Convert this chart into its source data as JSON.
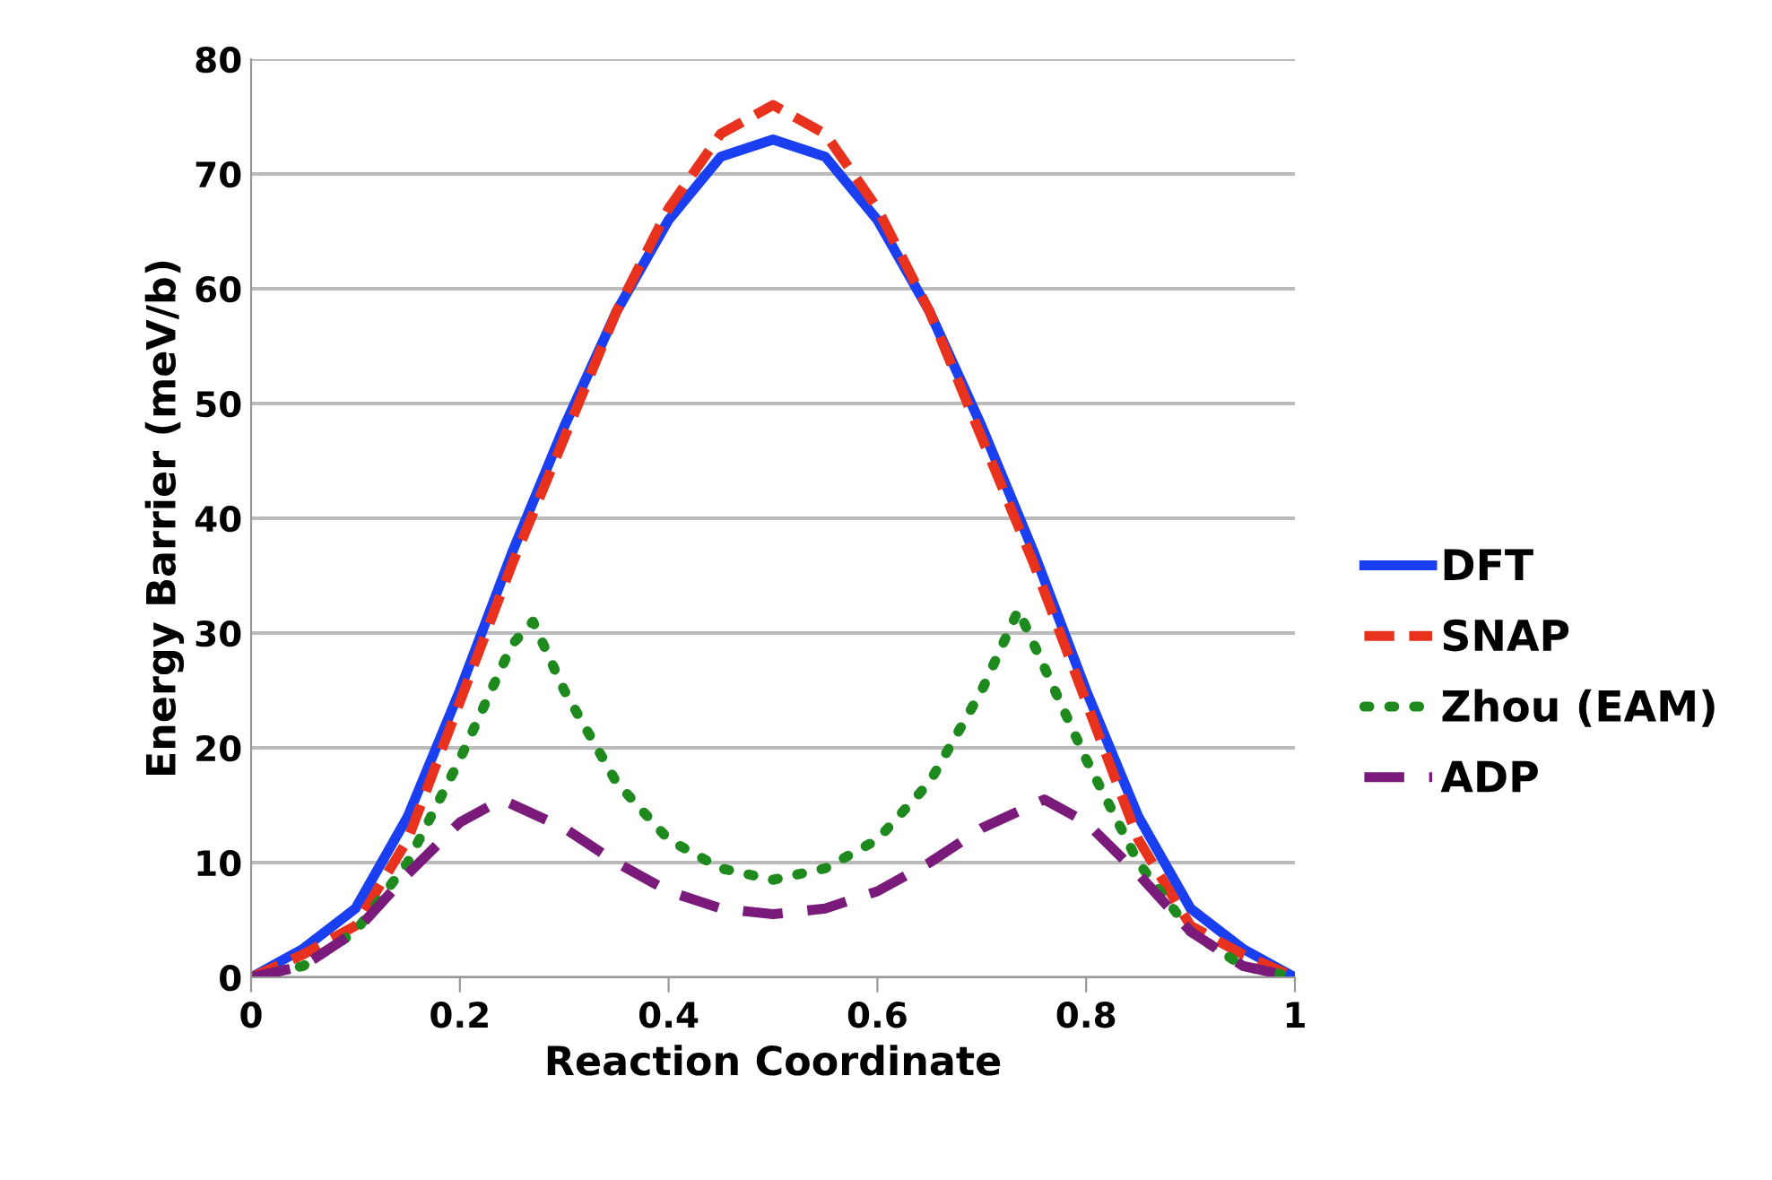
{
  "chart_data": {
    "type": "line",
    "xlabel": "Reaction Coordinate",
    "ylabel": "Energy Barrier (meV/b)",
    "xlim": [
      0,
      1
    ],
    "ylim": [
      0,
      80
    ],
    "xticks": [
      0,
      0.2,
      0.4,
      0.6,
      0.8,
      1
    ],
    "yticks": [
      0,
      10,
      20,
      30,
      40,
      50,
      60,
      70,
      80
    ],
    "grid": "y",
    "legend": "right",
    "series": [
      {
        "name": "DFT",
        "color": "#1a3ff0",
        "line_style": "solid",
        "x": [
          0,
          0.05,
          0.1,
          0.15,
          0.2,
          0.25,
          0.3,
          0.35,
          0.4,
          0.45,
          0.5,
          0.55,
          0.6,
          0.65,
          0.7,
          0.75,
          0.8,
          0.85,
          0.9,
          0.95,
          1
        ],
        "values": [
          0,
          2.5,
          6,
          14,
          25,
          37,
          48,
          58,
          66,
          71.5,
          73,
          71.5,
          66,
          58,
          48,
          37,
          25,
          14,
          6,
          2.5,
          0
        ]
      },
      {
        "name": "SNAP",
        "color": "#e8321e",
        "line_style": "dashed",
        "x": [
          0,
          0.05,
          0.1,
          0.15,
          0.2,
          0.25,
          0.3,
          0.35,
          0.4,
          0.45,
          0.5,
          0.55,
          0.6,
          0.65,
          0.7,
          0.75,
          0.8,
          0.85,
          0.9,
          0.95,
          1
        ],
        "values": [
          0,
          2,
          4.5,
          12,
          24,
          36,
          47,
          58,
          67,
          73.5,
          76,
          73.5,
          67,
          58,
          47,
          36,
          24,
          12,
          4.5,
          2,
          0
        ]
      },
      {
        "name": "Zhou (EAM)",
        "color": "#1e8a1e",
        "line_style": "dotted",
        "x": [
          0,
          0.05,
          0.1,
          0.15,
          0.2,
          0.25,
          0.27,
          0.3,
          0.35,
          0.4,
          0.45,
          0.5,
          0.55,
          0.6,
          0.65,
          0.7,
          0.735,
          0.76,
          0.8,
          0.85,
          0.9,
          0.95,
          1
        ],
        "values": [
          0,
          1,
          4,
          10,
          19,
          29,
          31,
          25,
          17,
          12,
          9.5,
          8.5,
          9.5,
          12,
          17,
          25,
          32,
          27,
          19,
          10,
          4,
          1,
          0
        ]
      },
      {
        "name": "ADP",
        "color": "#7a1a7a",
        "line_style": "dashed",
        "x": [
          0,
          0.05,
          0.1,
          0.15,
          0.2,
          0.24,
          0.3,
          0.35,
          0.4,
          0.45,
          0.5,
          0.55,
          0.6,
          0.65,
          0.7,
          0.76,
          0.8,
          0.85,
          0.9,
          0.95,
          1
        ],
        "values": [
          0,
          1,
          4,
          9,
          13.5,
          15.5,
          13,
          10,
          7.5,
          6,
          5.5,
          6,
          7.5,
          10,
          13,
          15.5,
          13.5,
          9,
          4,
          1,
          0
        ]
      }
    ]
  }
}
